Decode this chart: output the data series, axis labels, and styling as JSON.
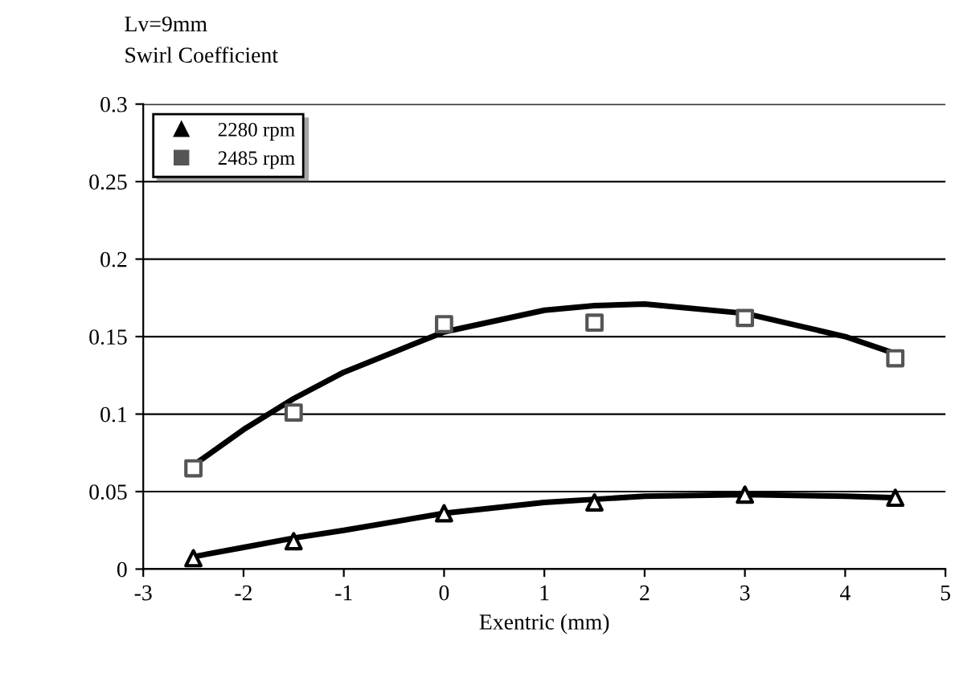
{
  "chart_data": {
    "type": "scatter",
    "title": "Lv=9mm",
    "subtitle": "Swirl Coefficient",
    "xlabel": "Exentric (mm)",
    "xlim": [
      -3,
      5
    ],
    "xticks": [
      -3,
      -2,
      -1,
      0,
      1,
      2,
      3,
      4,
      5
    ],
    "ylim": [
      0,
      0.3
    ],
    "yticks": [
      0,
      0.05,
      0.1,
      0.15,
      0.2,
      0.25,
      0.3
    ],
    "grid": "y",
    "legend": "top left",
    "series": [
      {
        "name": "2280 rpm",
        "color": "#000000",
        "marker": "triangle",
        "x": [
          -2.5,
          -1.5,
          0,
          1.5,
          3,
          4.5
        ],
        "values": [
          0.007,
          0.018,
          0.036,
          0.043,
          0.048,
          0.046
        ]
      },
      {
        "name": "2485 rpm",
        "color": "#555555",
        "marker": "square",
        "x": [
          -2.5,
          -1.5,
          0,
          1.5,
          3,
          4.5
        ],
        "values": [
          0.065,
          0.101,
          0.158,
          0.159,
          0.162,
          0.136
        ]
      },
      {
        "type": "line",
        "color": "#000000",
        "marker": "none",
        "line_style": "solid",
        "x": [
          -2.5,
          -2,
          -1.5,
          -1,
          0,
          1,
          1.5,
          2,
          3,
          4,
          4.5
        ],
        "values": [
          0.008,
          0.014,
          0.02,
          0.025,
          0.036,
          0.043,
          0.045,
          0.047,
          0.048,
          0.047,
          0.046
        ]
      },
      {
        "type": "line",
        "color": "#000000",
        "marker": "none",
        "line_style": "solid",
        "x": [
          -2.5,
          -2,
          -1.5,
          -1,
          0,
          1,
          1.5,
          2,
          3,
          4,
          4.5
        ],
        "values": [
          0.067,
          0.09,
          0.11,
          0.127,
          0.153,
          0.167,
          0.17,
          0.171,
          0.165,
          0.15,
          0.139
        ]
      }
    ]
  }
}
